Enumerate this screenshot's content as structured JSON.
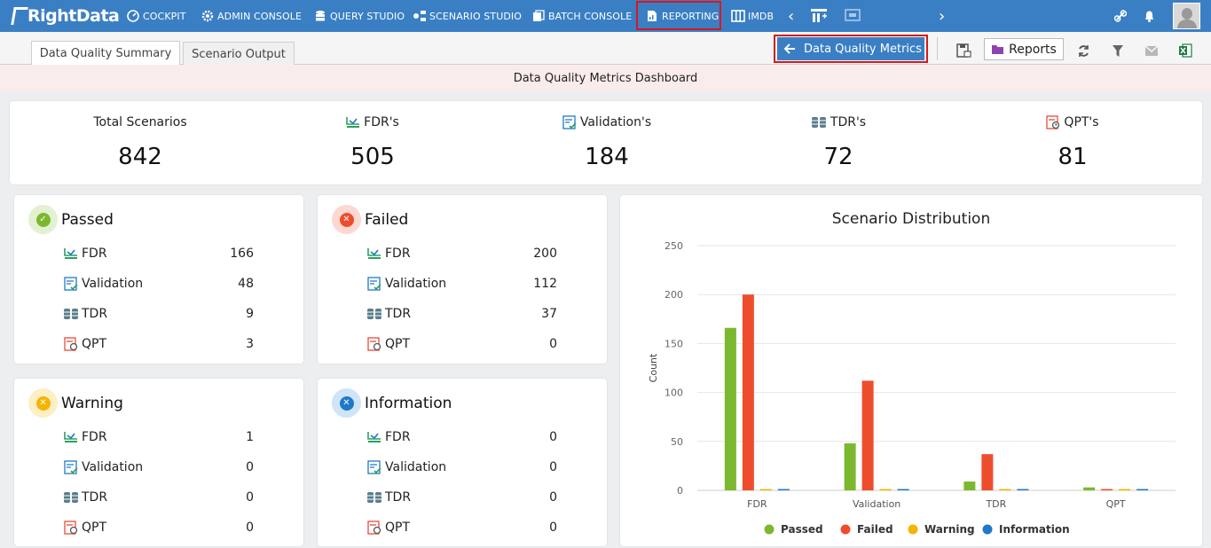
{
  "nav": {
    "logo": "RightData",
    "items": [
      {
        "label": "COCKPIT",
        "icon": "cockpit-icon"
      },
      {
        "label": "ADMIN CONSOLE",
        "icon": "gear-icon"
      },
      {
        "label": "QUERY STUDIO",
        "icon": "database-icon"
      },
      {
        "label": "SCENARIO STUDIO",
        "icon": "scenario-icon"
      },
      {
        "label": "BATCH CONSOLE",
        "icon": "batch-icon"
      },
      {
        "label": "REPORTING",
        "icon": "report-icon"
      },
      {
        "label": "IMDB",
        "icon": "imdb-icon"
      }
    ],
    "active": "REPORTING",
    "highlight_color": "#d7191c",
    "bar_color": "#3a7fc4"
  },
  "tabs": {
    "items": [
      "Data Quality Summary",
      "Scenario Output"
    ],
    "selected": "Data Quality Summary"
  },
  "toolbar": {
    "dqm_label": "Data Quality Metrics",
    "reports_label": "Reports"
  },
  "banner": {
    "title": "Data Quality Metrics Dashboard"
  },
  "totals": [
    {
      "label": "Total Scenarios",
      "value": "842",
      "icon": ""
    },
    {
      "label": "FDR's",
      "value": "505",
      "icon": "fdr-icon"
    },
    {
      "label": "Validation's",
      "value": "184",
      "icon": "validation-icon"
    },
    {
      "label": "TDR's",
      "value": "72",
      "icon": "tdr-icon"
    },
    {
      "label": "QPT's",
      "value": "81",
      "icon": "qpt-icon"
    }
  ],
  "cards": {
    "passed": {
      "title": "Passed",
      "color": "#7cb82f",
      "rows": [
        {
          "label": "FDR",
          "value": "166"
        },
        {
          "label": "Validation",
          "value": "48"
        },
        {
          "label": "TDR",
          "value": "9"
        },
        {
          "label": "QPT",
          "value": "3"
        }
      ]
    },
    "failed": {
      "title": "Failed",
      "color": "#ee4d2d",
      "rows": [
        {
          "label": "FDR",
          "value": "200"
        },
        {
          "label": "Validation",
          "value": "112"
        },
        {
          "label": "TDR",
          "value": "37"
        },
        {
          "label": "QPT",
          "value": "0"
        }
      ]
    },
    "warning": {
      "title": "Warning",
      "color": "#f4b400",
      "rows": [
        {
          "label": "FDR",
          "value": "1"
        },
        {
          "label": "Validation",
          "value": "0"
        },
        {
          "label": "TDR",
          "value": "0"
        },
        {
          "label": "QPT",
          "value": "0"
        }
      ]
    },
    "information": {
      "title": "Information",
      "color": "#1f78c8",
      "rows": [
        {
          "label": "FDR",
          "value": "0"
        },
        {
          "label": "Validation",
          "value": "0"
        },
        {
          "label": "TDR",
          "value": "0"
        },
        {
          "label": "QPT",
          "value": "0"
        }
      ]
    }
  },
  "chart_data": {
    "type": "bar",
    "title": "Scenario Distribution",
    "xlabel": "",
    "ylabel": "Count",
    "ylim": [
      0,
      250
    ],
    "yticks": [
      0,
      50,
      100,
      150,
      200,
      250
    ],
    "grid": true,
    "legend_position": "bottom",
    "categories": [
      "FDR",
      "Validation",
      "TDR",
      "QPT"
    ],
    "series": [
      {
        "name": "Passed",
        "color": "#7cb82f",
        "values": [
          166,
          48,
          9,
          3
        ]
      },
      {
        "name": "Failed",
        "color": "#ee4d2d",
        "values": [
          200,
          112,
          37,
          0
        ]
      },
      {
        "name": "Warning",
        "color": "#f4b400",
        "values": [
          1,
          0,
          0,
          0
        ]
      },
      {
        "name": "Information",
        "color": "#1f78c8",
        "values": [
          0,
          0,
          0,
          0
        ]
      }
    ]
  }
}
